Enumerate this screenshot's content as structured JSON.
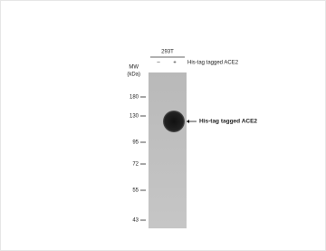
{
  "header": {
    "cell_line": "293T",
    "lanes": [
      "–",
      "+"
    ],
    "lane_label": "His-tag tagged ACE2"
  },
  "ladder": {
    "title": "MW",
    "unit": "(kDa)",
    "markers": [
      180,
      130,
      95,
      72,
      55,
      43
    ]
  },
  "annotation": "His-tag  tagged ACE2"
}
